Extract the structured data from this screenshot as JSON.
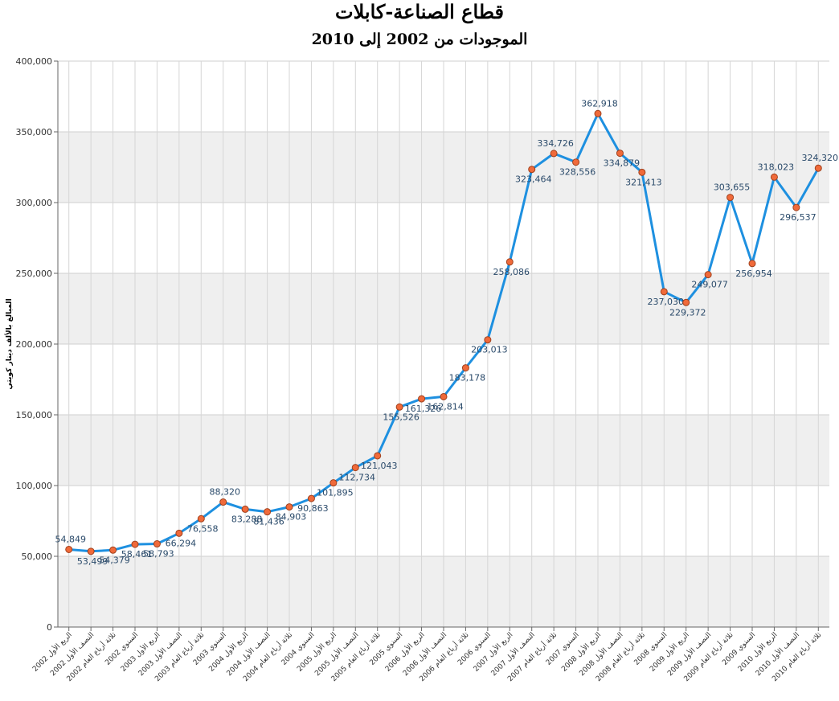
{
  "chart_data": {
    "type": "line",
    "title": "قطاع الصناعة-كابلات",
    "subtitle": "الموجودات من 2002 إلى 2010",
    "xlabel": "",
    "ylabel": "المبالغ بالألف دينار كويتي",
    "ylim": [
      0,
      400000
    ],
    "yticks": [
      "0",
      "50,000",
      "100,000",
      "150,000",
      "200,000",
      "250,000",
      "300,000",
      "350,000",
      "400,000"
    ],
    "grid": true,
    "legend": "none",
    "colors": {
      "line": "#1e90e0",
      "marker_fill": "#f06a3a",
      "marker_stroke": "#a0401c",
      "band": "#efefef"
    },
    "categories": [
      "الربع الأول 2002",
      "النصف الأول 2002",
      "ثلاثة أرباع العام 2002",
      "السنوي 2002",
      "الربع الأول 2003",
      "النصف الأول 2003",
      "ثلاثة أرباع العام 2003",
      "السنوي 2003",
      "الربع الأول 2004",
      "النصف الأول 2004",
      "ثلاثة أرباع العام 2004",
      "السنوي 2004",
      "الربع الأول 2005",
      "النصف الأول 2005",
      "ثلاثة أرباع العام 2005",
      "السنوي 2005",
      "الربع الأول 2006",
      "النصف الأول 2006",
      "ثلاثة أرباع العام 2006",
      "السنوي 2006",
      "الربع الأول 2007",
      "النصف الأول 2007",
      "ثلاثة أرباع العام 2007",
      "السنوي 2007",
      "الربع الأول 2008",
      "النصف الأول 2008",
      "ثلاثة أرباع العام 2008",
      "السنوي 2008",
      "الربع الأول 2009",
      "النصف الأول 2009",
      "ثلاثة أرباع العام 2009",
      "السنوي 2009",
      "الربع الأول 2010",
      "النصف الأول 2010",
      "ثلاثة أرباع العام 2010"
    ],
    "values": [
      54849,
      53499,
      54379,
      58461,
      58793,
      66294,
      76558,
      88320,
      83288,
      81436,
      84903,
      90863,
      101895,
      112734,
      121043,
      155526,
      161326,
      162814,
      183178,
      203013,
      258086,
      323464,
      334726,
      328556,
      362918,
      334879,
      321413,
      237030,
      229372,
      249077,
      303655,
      256954,
      318023,
      296537,
      324320
    ],
    "labels": [
      "54,849",
      "53,499",
      "54,379",
      "58,461",
      "58,793",
      "66,294",
      "76,558",
      "88,320",
      "83,288",
      "81,436",
      "84,903",
      "90,863",
      "101,895",
      "112,734",
      "121,043",
      "155,526",
      "161,326",
      "162,814",
      "183,178",
      "203,013",
      "258,086",
      "323,464",
      "334,726",
      "328,556",
      "362,918",
      "334,879",
      "321,413",
      "237,030",
      "229,372",
      "249,077",
      "303,655",
      "256,954",
      "318,023",
      "296,537",
      "324,320"
    ]
  }
}
